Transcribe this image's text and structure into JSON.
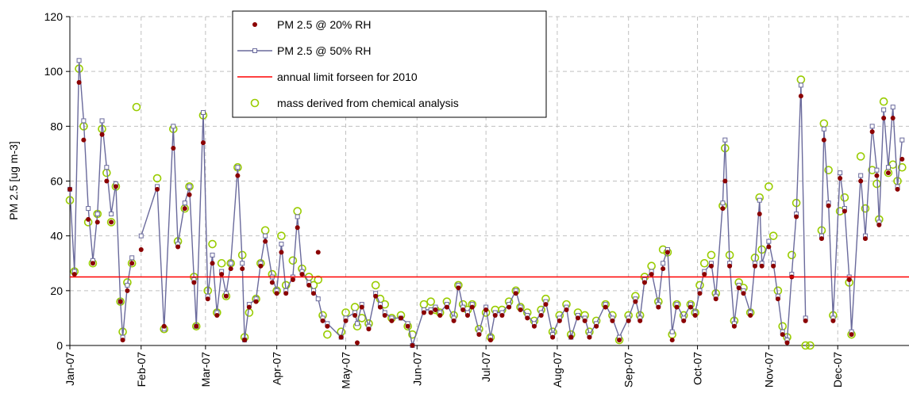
{
  "chart_data": {
    "type": "scatter-line",
    "y_label": "PM 2.5 [ug m-3]",
    "x": [
      0,
      2,
      4,
      6,
      8,
      10,
      12,
      14,
      16,
      18,
      20,
      22,
      23,
      25,
      27,
      29,
      31,
      38,
      41,
      45,
      47,
      50,
      52,
      54,
      55,
      58,
      60,
      62,
      64,
      66,
      68,
      70,
      73,
      75,
      76,
      78,
      81,
      83,
      85,
      88,
      90,
      92,
      94,
      97,
      99,
      101,
      104,
      106,
      108,
      110,
      112,
      118,
      120,
      124,
      125,
      127,
      130,
      133,
      135,
      137,
      140,
      144,
      147,
      149,
      154,
      157,
      159,
      161,
      164,
      167,
      169,
      171,
      173,
      175,
      178,
      181,
      183,
      185,
      188,
      191,
      194,
      196,
      199,
      202,
      205,
      207,
      210,
      213,
      216,
      218,
      221,
      224,
      226,
      229,
      233,
      236,
      239,
      243,
      246,
      248,
      250,
      253,
      256,
      258,
      260,
      262,
      264,
      267,
      270,
      272,
      274,
      276,
      279,
      281,
      284,
      285,
      287,
      289,
      291,
      293,
      296,
      298,
      300,
      301,
      304,
      306,
      308,
      310,
      312,
      314,
      316,
      318,
      320,
      322,
      327,
      328,
      330,
      332,
      335,
      337,
      339,
      340,
      344,
      346,
      349,
      351,
      352,
      354,
      356,
      358,
      360,
      362
    ],
    "xlim": [
      0,
      365
    ],
    "xticks": [
      {
        "value": 0,
        "label": "Jan-07"
      },
      {
        "value": 31,
        "label": "Feb-07"
      },
      {
        "value": 59,
        "label": "Mar-07"
      },
      {
        "value": 90,
        "label": "Apr-07"
      },
      {
        "value": 120,
        "label": "May-07"
      },
      {
        "value": 151,
        "label": "Jun-07"
      },
      {
        "value": 181,
        "label": "Jul-07"
      },
      {
        "value": 212,
        "label": "Aug-07"
      },
      {
        "value": 243,
        "label": "Sep-07"
      },
      {
        "value": 273,
        "label": "Oct-07"
      },
      {
        "value": 304,
        "label": "Nov-07"
      },
      {
        "value": 334,
        "label": "Dec-07"
      }
    ],
    "ylim": [
      0,
      120
    ],
    "yticks": [
      0,
      20,
      40,
      60,
      80,
      100,
      120
    ],
    "grid": true,
    "legend": "top",
    "series": [
      {
        "name": "PM 2.5 @ 20% RH",
        "color": "#8b0000",
        "mode": "markers",
        "values": [
          57,
          26,
          96,
          75,
          46,
          30,
          45,
          77,
          60,
          45,
          58,
          16,
          2,
          20,
          30,
          null,
          35,
          57,
          7,
          72,
          36,
          50,
          55,
          23,
          7,
          74,
          17,
          30,
          11,
          26,
          18,
          28,
          62,
          28,
          2,
          14,
          16,
          29,
          38,
          23,
          19,
          34,
          19,
          24,
          43,
          26,
          22,
          19,
          34,
          9,
          7,
          3,
          9,
          11,
          1,
          14,
          6,
          18,
          14,
          11,
          9,
          10,
          7,
          0,
          12,
          12,
          13,
          11,
          14,
          9,
          21,
          13,
          11,
          14,
          4,
          13,
          2,
          11,
          11,
          14,
          19,
          13,
          10,
          7,
          11,
          15,
          3,
          9,
          13,
          3,
          10,
          9,
          3,
          7,
          14,
          9,
          2,
          9,
          16,
          9,
          23,
          26,
          14,
          28,
          34,
          2,
          14,
          9,
          14,
          11,
          19,
          26,
          29,
          17,
          50,
          60,
          29,
          7,
          21,
          19,
          11,
          29,
          48,
          29,
          36,
          29,
          17,
          4,
          1,
          25,
          47,
          91,
          9,
          null,
          39,
          75,
          51,
          9,
          61,
          49,
          24,
          4,
          60,
          39,
          78,
          62,
          44,
          83,
          63,
          83,
          57,
          68
        ]
      },
      {
        "name": "PM 2.5 @ 50% RH",
        "color": "#6a6a9c",
        "mode": "lines+markers",
        "values": [
          57,
          27,
          104,
          82,
          50,
          31,
          48,
          82,
          65,
          48,
          59,
          16,
          3,
          22,
          32,
          null,
          40,
          58,
          6,
          80,
          37,
          52,
          58,
          24,
          7,
          85,
          18,
          33,
          12,
          27,
          19,
          30,
          65,
          30,
          2,
          15,
          17,
          30,
          40,
          25,
          20,
          37,
          20,
          25,
          47,
          27,
          23,
          20,
          17,
          10,
          8,
          3,
          10,
          12,
          8,
          15,
          7,
          19,
          15,
          12,
          10,
          10,
          8,
          0,
          13,
          13,
          14,
          12,
          15,
          10,
          22,
          14,
          12,
          15,
          5,
          14,
          3,
          12,
          12,
          15,
          20,
          14,
          11,
          8,
          12,
          16,
          4,
          10,
          14,
          3,
          11,
          10,
          4,
          8,
          15,
          10,
          3,
          10,
          17,
          10,
          24,
          27,
          15,
          30,
          35,
          5,
          15,
          10,
          15,
          12,
          20,
          27,
          30,
          18,
          52,
          75,
          30,
          8,
          22,
          20,
          12,
          30,
          53,
          30,
          38,
          30,
          18,
          5,
          2,
          26,
          48,
          95,
          10,
          null,
          40,
          79,
          52,
          10,
          63,
          50,
          25,
          5,
          62,
          40,
          80,
          64,
          45,
          86,
          65,
          87,
          58,
          75
        ]
      },
      {
        "name": "annual limit forseen for 2010",
        "color": "#ff0000",
        "mode": "hline",
        "value": 25
      },
      {
        "name": "mass derived from chemical analysis",
        "color": "#99cc00",
        "mode": "open-markers",
        "values": [
          53,
          27,
          101,
          80,
          45,
          30,
          48,
          79,
          63,
          45,
          58,
          16,
          5,
          23,
          30,
          87,
          null,
          61,
          6,
          79,
          38,
          50,
          58,
          25,
          7,
          84,
          20,
          37,
          12,
          30,
          18,
          30,
          65,
          33,
          3,
          12,
          17,
          30,
          42,
          26,
          20,
          40,
          22,
          31,
          49,
          28,
          25,
          22,
          24,
          11,
          4,
          5,
          12,
          14,
          7,
          10,
          8,
          22,
          17,
          15,
          10,
          11,
          7,
          4,
          15,
          16,
          13,
          12,
          16,
          11,
          22,
          15,
          13,
          15,
          6,
          12,
          3,
          13,
          13,
          16,
          20,
          14,
          12,
          9,
          13,
          17,
          5,
          11,
          15,
          4,
          12,
          11,
          5,
          9,
          15,
          11,
          2,
          11,
          18,
          11,
          25,
          29,
          16,
          35,
          34,
          4,
          15,
          11,
          15,
          12,
          22,
          30,
          33,
          19,
          51,
          72,
          33,
          9,
          23,
          21,
          12,
          32,
          54,
          35,
          58,
          40,
          20,
          7,
          3,
          33,
          52,
          97,
          0,
          0,
          42,
          81,
          64,
          11,
          49,
          54,
          23,
          4,
          69,
          50,
          64,
          59,
          46,
          89,
          63,
          66,
          60,
          65
        ]
      }
    ]
  }
}
